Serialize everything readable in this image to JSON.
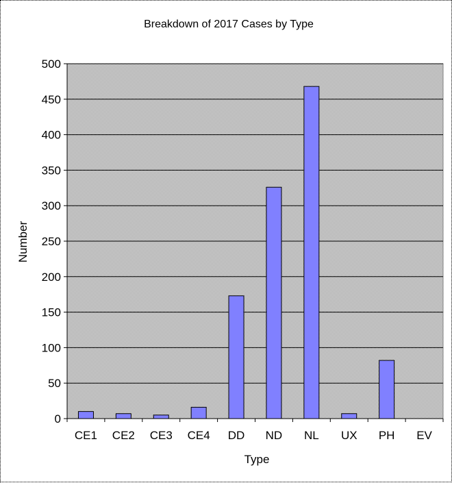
{
  "colors": {
    "bar_fill": "#8080ff",
    "bar_stroke": "#000000",
    "plot_bg": "#c0c0c0",
    "gridline": "#000000"
  },
  "chart_data": {
    "type": "bar",
    "title": "Breakdown of 2017 Cases by Type",
    "xlabel": "Type",
    "ylabel": "Number",
    "categories": [
      "CE1",
      "CE2",
      "CE3",
      "CE4",
      "DD",
      "ND",
      "NL",
      "UX",
      "PH",
      "EV"
    ],
    "values": [
      10,
      7,
      5,
      16,
      173,
      326,
      468,
      7,
      82,
      0
    ],
    "ylim": [
      0,
      500
    ],
    "yticks": [
      0,
      50,
      100,
      150,
      200,
      250,
      300,
      350,
      400,
      450,
      500
    ],
    "grid": true,
    "legend": "none"
  }
}
